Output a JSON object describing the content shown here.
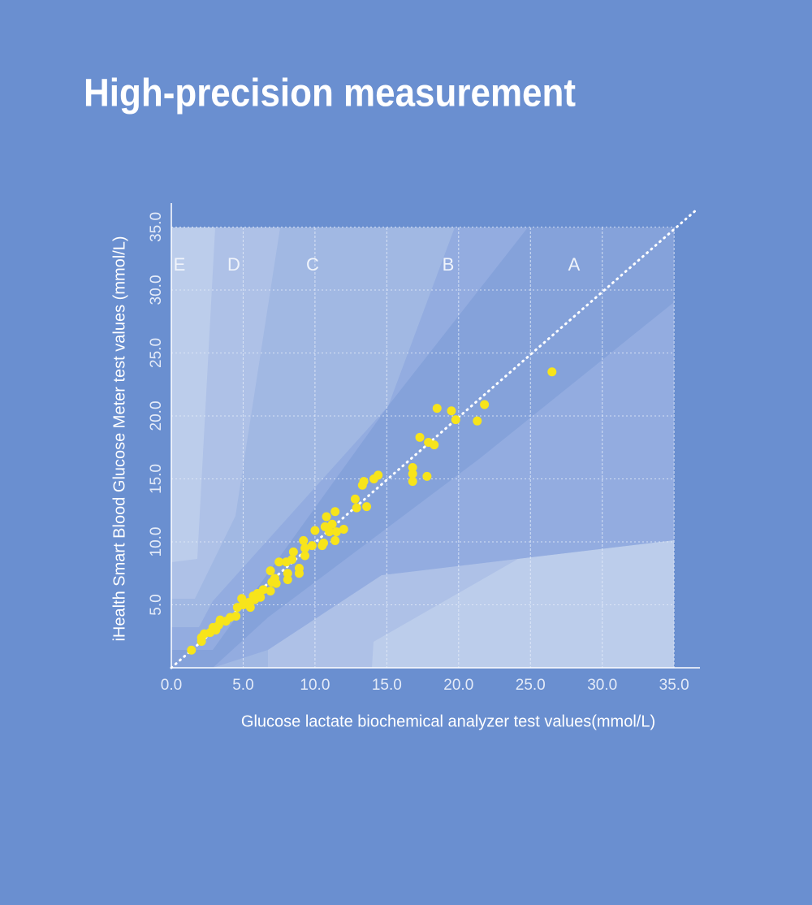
{
  "chart_data": {
    "type": "scatter",
    "title": "High-precision measurement",
    "xlabel": "Glucose lactate biochemical analyzer test values(mmol/L)",
    "ylabel": "iHealth Smart Blood Glucose Meter test values (mmol/L)",
    "zone_labels": [
      "E",
      "D",
      "C",
      "B",
      "A"
    ],
    "color": "#f7e41b",
    "xlim": [
      0,
      36.8
    ],
    "ylim": [
      0,
      36.9
    ],
    "xticks": [
      {
        "value": 0,
        "label": "0.0"
      },
      {
        "value": 5,
        "label": "5.0"
      },
      {
        "value": 10,
        "label": "10.0"
      },
      {
        "value": 15,
        "label": "15.0"
      },
      {
        "value": 20,
        "label": "20.0"
      },
      {
        "value": 25,
        "label": "25.0"
      },
      {
        "value": 30,
        "label": "30.0"
      },
      {
        "value": 35,
        "label": "35.0"
      }
    ],
    "yticks": [
      {
        "value": 5,
        "label": "5.0"
      },
      {
        "value": 10,
        "label": "10.0"
      },
      {
        "value": 15,
        "label": "15.0"
      },
      {
        "value": 20,
        "label": "20.0"
      },
      {
        "value": 25,
        "label": "25.0"
      },
      {
        "value": 30,
        "label": "30.0"
      },
      {
        "value": 35,
        "label": "35.0"
      }
    ],
    "grid": true,
    "x": [
      26.5,
      21.8,
      18.5,
      19.5,
      19.8,
      21.3,
      17.3,
      17.9,
      18.3,
      16.8,
      16.8,
      17.8,
      16.8,
      14.4,
      14.1,
      13.4,
      13.3,
      12.8,
      12.9,
      13.6,
      11.4,
      10.8,
      12.0,
      11.2,
      10.7,
      11.0,
      11.5,
      10.0,
      11.4,
      9.2,
      10.5,
      9.8,
      10.6,
      9.3,
      8.5,
      9.3,
      7.5,
      8.0,
      8.4,
      8.9,
      8.9,
      8.1,
      8.1,
      6.9,
      7.2,
      7.0,
      6.9,
      6.4,
      6.0,
      5.7,
      5.8,
      5.4,
      5.0,
      4.9,
      4.6,
      4.5,
      4.1,
      3.8,
      3.4,
      3.3,
      2.9,
      2.7,
      2.3,
      2.1,
      2.1,
      1.4,
      7.3,
      6.2,
      5.5,
      3.1
    ],
    "values": [
      23.5,
      20.9,
      20.6,
      20.4,
      19.7,
      19.6,
      18.3,
      17.9,
      17.7,
      15.9,
      15.4,
      15.2,
      14.8,
      15.3,
      15.0,
      14.8,
      14.5,
      13.4,
      12.7,
      12.8,
      12.4,
      12.0,
      11.0,
      11.4,
      11.2,
      10.8,
      10.8,
      10.9,
      10.1,
      10.1,
      9.7,
      9.7,
      9.9,
      9.5,
      9.2,
      8.9,
      8.4,
      8.4,
      8.6,
      7.9,
      7.5,
      7.5,
      7.0,
      7.7,
      7.1,
      6.8,
      6.1,
      6.2,
      5.9,
      5.7,
      5.4,
      5.2,
      5.0,
      5.5,
      4.8,
      4.1,
      4.0,
      3.7,
      3.8,
      3.4,
      3.2,
      2.8,
      2.7,
      2.4,
      2.1,
      1.4,
      6.7,
      5.6,
      4.8,
      3.0
    ]
  }
}
